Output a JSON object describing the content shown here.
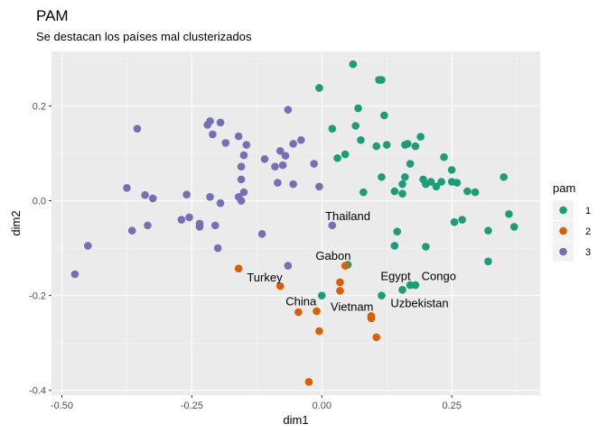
{
  "chart_data": {
    "type": "scatter",
    "title": "PAM",
    "subtitle": "Se destacan los países mal clusterizados",
    "xlabel": "dim1",
    "ylabel": "dim2",
    "xlim": [
      -0.52,
      0.42
    ],
    "ylim": [
      -0.41,
      0.315
    ],
    "xticks": [
      -0.5,
      -0.25,
      0.0,
      0.25
    ],
    "xtick_labels": [
      "-0.50",
      "-0.25",
      "0.00",
      "0.25"
    ],
    "yticks": [
      -0.4,
      -0.2,
      0.0,
      0.2
    ],
    "ytick_labels": [
      "-0.4",
      "-0.2",
      "0.0",
      "0.2"
    ],
    "grid": true,
    "legend": {
      "title": "pam",
      "position": "right",
      "entries": [
        {
          "label": "1",
          "color": "#1b9e77"
        },
        {
          "label": "2",
          "color": "#d95f02"
        },
        {
          "label": "3",
          "color": "#7570b3"
        }
      ]
    },
    "series": [
      {
        "name": "1",
        "color": "#1b9e77",
        "points": [
          [
            0.06,
            0.288
          ],
          [
            0.11,
            0.255
          ],
          [
            0.115,
            0.255
          ],
          [
            -0.005,
            0.238
          ],
          [
            0.07,
            0.195
          ],
          [
            0.12,
            0.18
          ],
          [
            0.02,
            0.152
          ],
          [
            0.065,
            0.158
          ],
          [
            0.075,
            0.128
          ],
          [
            0.105,
            0.115
          ],
          [
            0.125,
            0.118
          ],
          [
            0.16,
            0.118
          ],
          [
            0.165,
            0.12
          ],
          [
            0.18,
            0.115
          ],
          [
            0.19,
            0.135
          ],
          [
            0.03,
            0.09
          ],
          [
            0.045,
            0.098
          ],
          [
            0.08,
            0.018
          ],
          [
            0.115,
            0.05
          ],
          [
            0.17,
            0.078
          ],
          [
            0.16,
            0.05
          ],
          [
            0.195,
            0.045
          ],
          [
            0.21,
            0.04
          ],
          [
            0.235,
            0.092
          ],
          [
            0.2,
            0.035
          ],
          [
            0.22,
            0.03
          ],
          [
            0.23,
            0.04
          ],
          [
            0.25,
            0.065
          ],
          [
            0.26,
            0.038
          ],
          [
            0.28,
            0.02
          ],
          [
            0.295,
            0.018
          ],
          [
            0.25,
            0.04
          ],
          [
            0.14,
            0.02
          ],
          [
            0.155,
            0.035
          ],
          [
            0.155,
            0.015
          ],
          [
            0.35,
            0.05
          ],
          [
            0.36,
            -0.028
          ],
          [
            0.37,
            -0.055
          ],
          [
            0.32,
            -0.063
          ],
          [
            0.27,
            -0.04
          ],
          [
            0.255,
            -0.045
          ],
          [
            0.145,
            -0.065
          ],
          [
            0.14,
            -0.095
          ],
          [
            0.2,
            -0.097
          ],
          [
            0.32,
            -0.128
          ],
          [
            0.05,
            -0.135
          ],
          [
            0.17,
            -0.178
          ],
          [
            0.18,
            -0.178
          ],
          [
            0.155,
            -0.188
          ],
          [
            0.115,
            -0.2
          ],
          [
            0.0,
            -0.2
          ]
        ]
      },
      {
        "name": "2",
        "color": "#d95f02",
        "points": [
          [
            -0.16,
            -0.143
          ],
          [
            -0.08,
            -0.18
          ],
          [
            0.045,
            -0.137
          ],
          [
            0.035,
            -0.172
          ],
          [
            0.035,
            -0.19
          ],
          [
            -0.045,
            -0.235
          ],
          [
            -0.01,
            -0.233
          ],
          [
            0.095,
            -0.243
          ],
          [
            0.095,
            -0.248
          ],
          [
            -0.005,
            -0.275
          ],
          [
            0.105,
            -0.288
          ],
          [
            -0.025,
            -0.382
          ]
        ]
      },
      {
        "name": "3",
        "color": "#7570b3",
        "points": [
          [
            -0.355,
            0.152
          ],
          [
            -0.22,
            0.16
          ],
          [
            -0.215,
            0.168
          ],
          [
            -0.195,
            0.165
          ],
          [
            -0.065,
            0.192
          ],
          [
            -0.21,
            0.14
          ],
          [
            -0.16,
            0.136
          ],
          [
            -0.185,
            0.122
          ],
          [
            -0.145,
            0.118
          ],
          [
            -0.04,
            0.128
          ],
          [
            -0.055,
            0.12
          ],
          [
            -0.15,
            0.096
          ],
          [
            -0.08,
            0.105
          ],
          [
            -0.09,
            0.072
          ],
          [
            -0.07,
            0.095
          ],
          [
            -0.11,
            0.088
          ],
          [
            -0.015,
            0.078
          ],
          [
            -0.155,
            0.072
          ],
          [
            -0.155,
            0.045
          ],
          [
            -0.075,
            0.075
          ],
          [
            -0.085,
            0.038
          ],
          [
            -0.055,
            0.035
          ],
          [
            -0.005,
            0.03
          ],
          [
            -0.375,
            0.027
          ],
          [
            -0.34,
            0.012
          ],
          [
            -0.325,
            0.005
          ],
          [
            -0.26,
            0.013
          ],
          [
            -0.215,
            0.008
          ],
          [
            -0.15,
            0.018
          ],
          [
            -0.16,
            0.008
          ],
          [
            -0.155,
            0.0
          ],
          [
            -0.195,
            -0.005
          ],
          [
            -0.27,
            -0.04
          ],
          [
            -0.255,
            -0.035
          ],
          [
            -0.235,
            -0.048
          ],
          [
            -0.235,
            -0.055
          ],
          [
            -0.205,
            -0.052
          ],
          [
            -0.335,
            -0.052
          ],
          [
            -0.365,
            -0.063
          ],
          [
            -0.2,
            -0.1
          ],
          [
            -0.115,
            -0.07
          ],
          [
            -0.45,
            -0.095
          ],
          [
            -0.475,
            -0.155
          ],
          [
            -0.065,
            -0.137
          ],
          [
            0.02,
            -0.052
          ]
        ]
      }
    ],
    "annotations": [
      {
        "text": "Thailand",
        "x": 0.05,
        "y": -0.033
      },
      {
        "text": "Gabon",
        "x": 0.022,
        "y": -0.117
      },
      {
        "text": "Turkey",
        "x": -0.11,
        "y": -0.163
      },
      {
        "text": "Egypt",
        "x": 0.142,
        "y": -0.16
      },
      {
        "text": "Congo",
        "x": 0.225,
        "y": -0.16
      },
      {
        "text": "China",
        "x": -0.04,
        "y": -0.213
      },
      {
        "text": "Vietnam",
        "x": 0.058,
        "y": -0.224
      },
      {
        "text": "Uzbekistan",
        "x": 0.188,
        "y": -0.217
      }
    ]
  }
}
